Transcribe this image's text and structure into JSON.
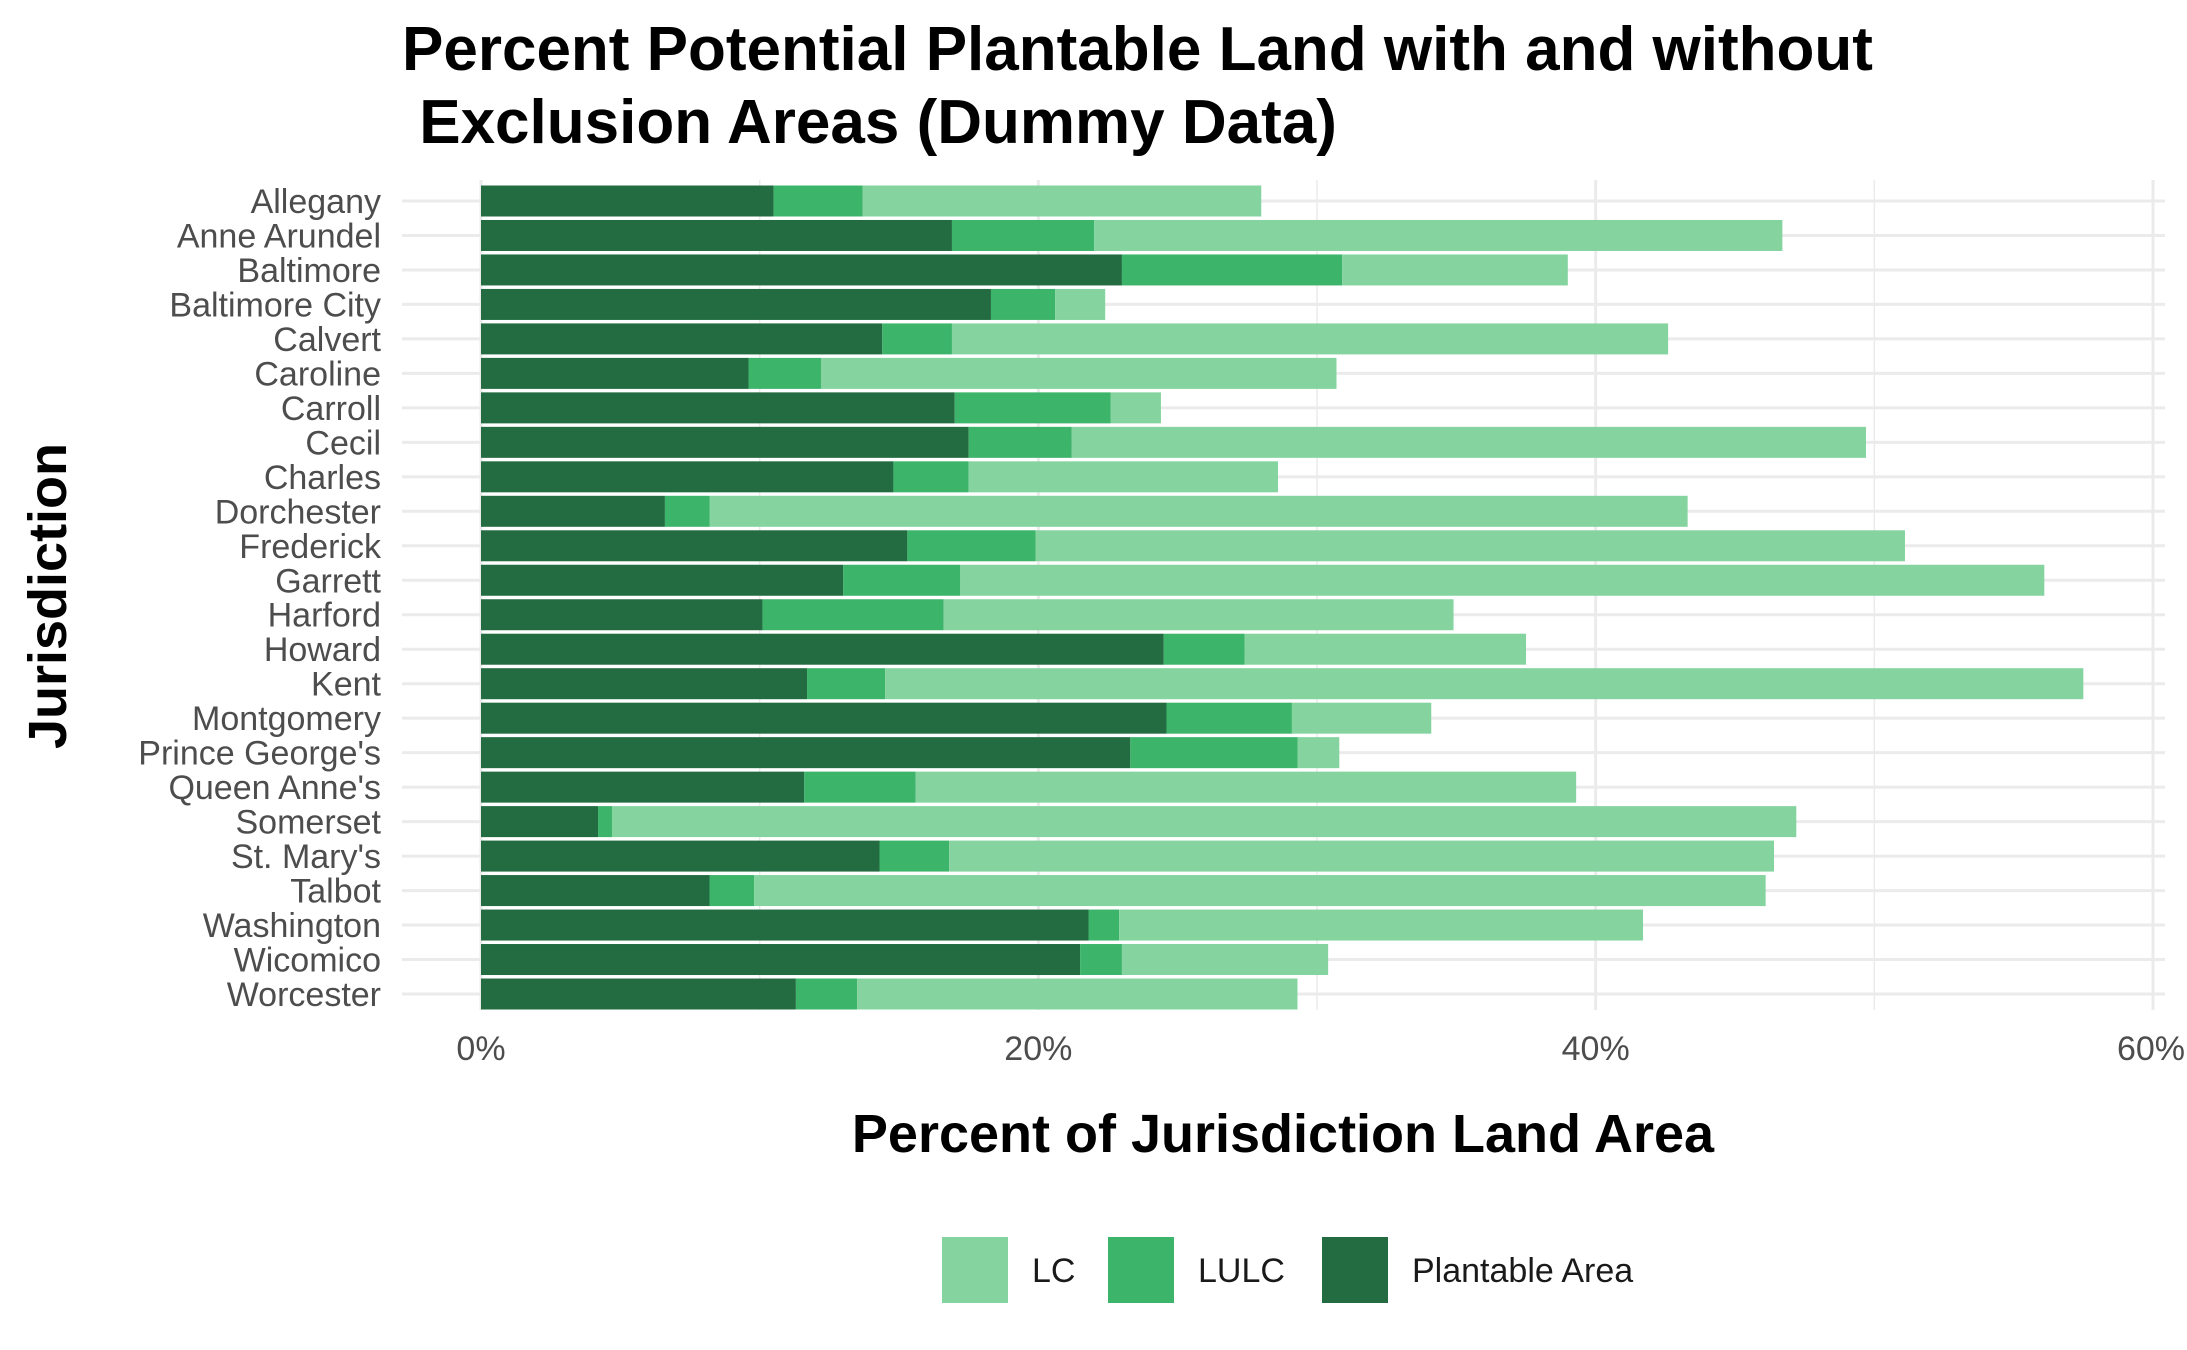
{
  "chart_data": {
    "type": "bar",
    "orientation": "horizontal",
    "stacked": true,
    "title_lines": [
      "Percent Potential Plantable Land with and without",
      " Exclusion Areas (Dummy Data)"
    ],
    "xlabel": "Percent of Jurisdiction Land Area",
    "ylabel": "Jurisdiction",
    "xlim": [
      0,
      60
    ],
    "x_ticks": [
      0,
      20,
      40,
      60
    ],
    "x_tick_labels": [
      "0%",
      "20%",
      "40%",
      "60%"
    ],
    "grid": true,
    "legend_position": "bottom",
    "categories": [
      "Allegany",
      "Anne Arundel",
      "Baltimore",
      "Baltimore City",
      "Calvert",
      "Caroline",
      "Carroll",
      "Cecil",
      "Charles",
      "Dorchester",
      "Frederick",
      "Garrett",
      "Harford",
      "Howard",
      "Kent",
      "Montgomery",
      "Prince George's",
      "Queen Anne's",
      "Somerset",
      "St. Mary's",
      "Talbot",
      "Washington",
      "Wicomico",
      "Worcester"
    ],
    "series": [
      {
        "name": "Plantable Area",
        "color": "#236b40",
        "values": [
          10.5,
          16.9,
          23.0,
          18.3,
          14.4,
          9.6,
          17.0,
          17.5,
          14.8,
          6.6,
          15.3,
          13.0,
          10.1,
          24.5,
          11.7,
          24.6,
          23.3,
          11.6,
          4.2,
          14.3,
          8.2,
          21.8,
          21.5,
          11.3
        ]
      },
      {
        "name": "LULC",
        "color": "#3cb46a",
        "values": [
          3.2,
          5.1,
          7.9,
          2.3,
          2.5,
          2.6,
          5.6,
          3.7,
          2.7,
          1.6,
          4.6,
          4.2,
          6.5,
          2.9,
          2.8,
          4.5,
          6.0,
          4.0,
          0.5,
          2.5,
          1.6,
          1.1,
          1.5,
          2.2
        ]
      },
      {
        "name": "LC",
        "color": "#85d4a0",
        "values": [
          14.3,
          24.7,
          8.1,
          1.8,
          25.7,
          18.5,
          1.8,
          28.5,
          11.1,
          35.1,
          31.2,
          38.9,
          18.3,
          10.1,
          43.0,
          5.0,
          1.5,
          23.7,
          42.5,
          29.6,
          36.3,
          18.8,
          7.4,
          15.8
        ]
      }
    ],
    "legend_order": [
      "LC",
      "LULC",
      "Plantable Area"
    ],
    "colors": {
      "gridline": "#ebebeb",
      "background": "#ffffff"
    }
  }
}
